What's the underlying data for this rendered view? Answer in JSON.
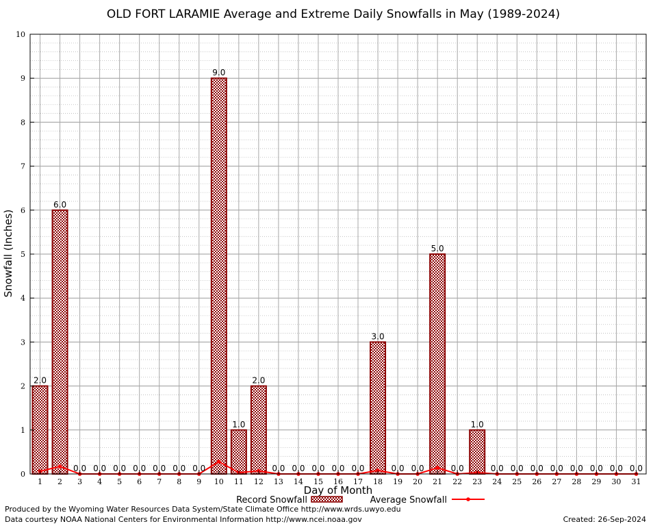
{
  "chart_data": {
    "type": "bar",
    "title": "OLD FORT LARAMIE Average and Extreme Daily Snowfalls in May (1989-2024)",
    "xlabel": "Day of Month",
    "ylabel": "Snowfall (Inches)",
    "ylim": [
      0,
      10
    ],
    "yticks": [
      "0",
      "1",
      "2",
      "3",
      "4",
      "5",
      "6",
      "7",
      "8",
      "9",
      "10"
    ],
    "grid": true,
    "categories": [
      "1",
      "2",
      "3",
      "4",
      "5",
      "6",
      "7",
      "8",
      "9",
      "10",
      "11",
      "12",
      "13",
      "14",
      "15",
      "16",
      "17",
      "18",
      "19",
      "20",
      "21",
      "22",
      "23",
      "24",
      "25",
      "26",
      "27",
      "28",
      "29",
      "30",
      "31"
    ],
    "series": [
      {
        "name": "Record Snowfall",
        "type": "bar",
        "color": "#8b0000",
        "values": [
          2.0,
          6.0,
          0.0,
          0.0,
          0.0,
          0.0,
          0.0,
          0.0,
          0.0,
          9.0,
          1.0,
          2.0,
          0.0,
          0.0,
          0.0,
          0.0,
          0.0,
          3.0,
          0.0,
          0.0,
          5.0,
          0.0,
          1.0,
          0.0,
          0.0,
          0.0,
          0.0,
          0.0,
          0.0,
          0.0,
          0.0
        ],
        "labels": [
          "2.0",
          "6.0",
          "0.0",
          "0.0",
          "0.0",
          "0.0",
          "0.0",
          "0.0",
          "0.0",
          "9.0",
          "1.0",
          "2.0",
          "0.0",
          "0.0",
          "0.0",
          "0.0",
          "0.0",
          "3.0",
          "0.0",
          "0.0",
          "5.0",
          "0.0",
          "1.0",
          "0.0",
          "0.0",
          "0.0",
          "0.0",
          "0.0",
          "0.0",
          "0.0",
          "0.0"
        ]
      },
      {
        "name": "Average Snowfall",
        "type": "line",
        "color": "#ff0000",
        "values": [
          0.06,
          0.17,
          0.0,
          0.0,
          0.0,
          0.0,
          0.0,
          0.0,
          0.0,
          0.28,
          0.03,
          0.07,
          0.0,
          0.0,
          0.0,
          0.0,
          0.0,
          0.08,
          0.0,
          0.0,
          0.14,
          0.0,
          0.03,
          0.0,
          0.0,
          0.0,
          0.0,
          0.0,
          0.0,
          0.0,
          0.0
        ]
      }
    ],
    "legend_position": "bottom"
  },
  "footer": {
    "credit_line_1": "Produced by the Wyoming Water Resources Data System/State Climate Office http://www.wrds.uwyo.edu",
    "credit_line_2": "Data courtesy NOAA National Centers for Environmental Information http://www.ncei.noaa.gov",
    "created": "Created:  26-Sep-2024"
  }
}
